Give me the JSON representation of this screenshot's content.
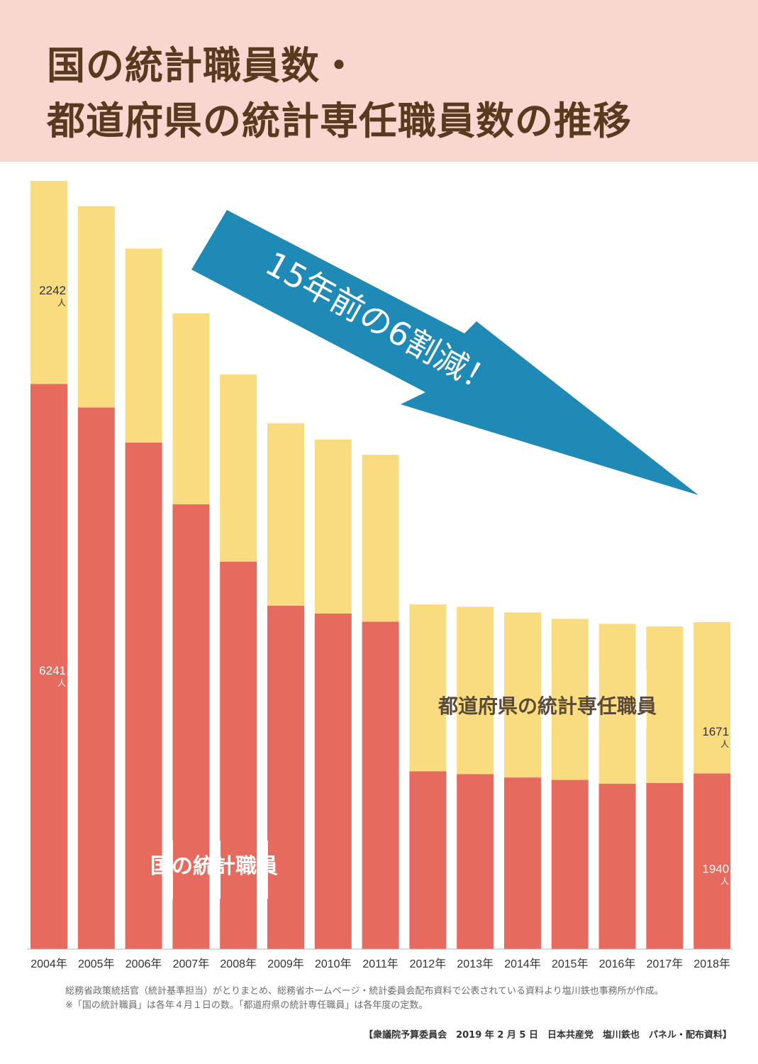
{
  "title": {
    "line1": "国の統計職員数・",
    "line2": "都道府県の統計専任職員数の推移"
  },
  "colors": {
    "national": "#e66a5d",
    "prefectural": "#f9dc7f",
    "arrow": "#1f8ab5",
    "title_band": "#f9d6cf",
    "title_text": "#5a3a1e"
  },
  "chart_data": {
    "type": "bar",
    "stacked": true,
    "categories": [
      "2004年",
      "2005年",
      "2006年",
      "2007年",
      "2008年",
      "2009年",
      "2010年",
      "2011年",
      "2012年",
      "2013年",
      "2014年",
      "2015年",
      "2016年",
      "2017年",
      "2018年"
    ],
    "series": [
      {
        "name": "国の統計職員",
        "values": [
          6241,
          5981,
          5593,
          4911,
          4279,
          3792,
          3705,
          3616,
          1964,
          1933,
          1895,
          1868,
          1827,
          1835,
          1940
        ]
      },
      {
        "name": "都道府県の統計専任職員",
        "values": [
          2242,
          2222,
          2143,
          2109,
          2067,
          2015,
          1922,
          1842,
          1842,
          1847,
          1823,
          1779,
          1766,
          1728,
          1671
        ]
      }
    ],
    "data_labels": [
      {
        "category": "2004年",
        "series": "都道府県の統計専任職員",
        "value": "2242",
        "unit": "人"
      },
      {
        "category": "2004年",
        "series": "国の統計職員",
        "value": "6241",
        "unit": "人"
      },
      {
        "category": "2018年",
        "series": "都道府県の統計専任職員",
        "value": "1671",
        "unit": "人"
      },
      {
        "category": "2018年",
        "series": "国の統計職員",
        "value": "1940",
        "unit": "人"
      }
    ],
    "annotation": "15年前の6割減！",
    "ylim": [
      0,
      8483
    ],
    "grid": false,
    "legend": "none"
  },
  "footer": {
    "note1": "総務省政策統括官（統計基準担当）がとりまとめ、総務省ホームページ・統計委員会配布資料で公表されている資料より塩川鉄也事務所が作成。",
    "note2": "※「国の統計職員」は各年４月１日の数。「都道府県の統計専任職員」は各年度の定数。",
    "credit": "【衆議院予算委員会　2019 年 2 月 5 日　日本共産党　塩川鉄也　パネル・配布資料】"
  }
}
